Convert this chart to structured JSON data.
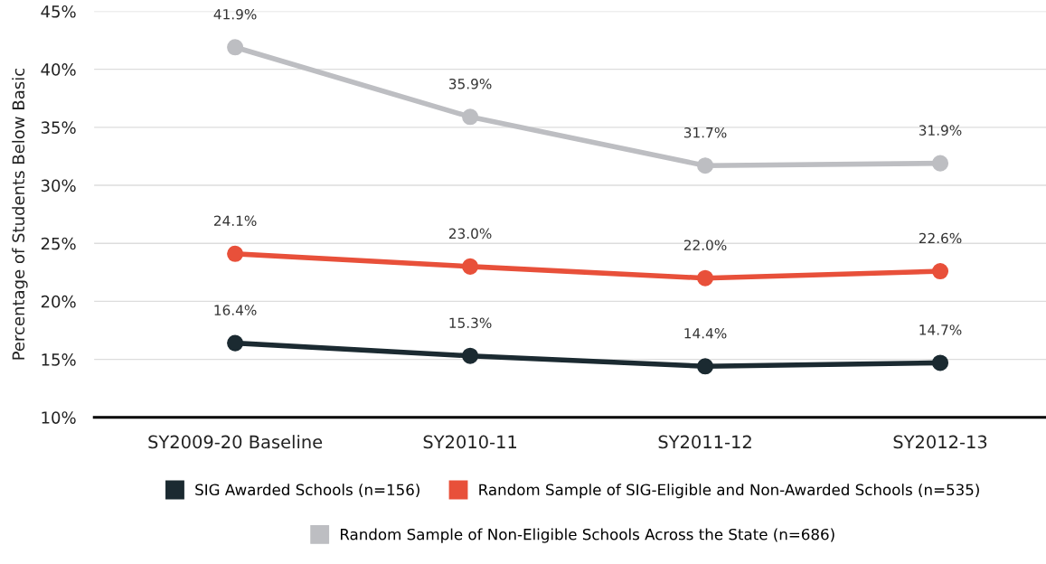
{
  "chart_data": {
    "type": "line",
    "ylabel": "Percentage of Students Below Basic",
    "categories": [
      "SY2009-20 Baseline",
      "SY2010-11",
      "SY2011-12",
      "SY2012-13"
    ],
    "series": [
      {
        "name": "SIG Awarded Schools (n=156)",
        "color": "#1b2a31",
        "values": [
          16.4,
          15.3,
          14.4,
          14.7
        ],
        "value_labels": [
          "16.4%",
          "15.3%",
          "14.4%",
          "14.7%"
        ]
      },
      {
        "name": "Random Sample of SIG-Eligible and Non-Awarded Schools (n=535)",
        "color": "#e8503a",
        "values": [
          24.1,
          23.0,
          22.0,
          22.6
        ],
        "value_labels": [
          "24.1%",
          "23.0%",
          "22.0%",
          "22.6%"
        ]
      },
      {
        "name": "Random Sample of Non-Eligible Schools Across the State (n=686)",
        "color": "#bdbec2",
        "values": [
          41.9,
          35.9,
          31.7,
          31.9
        ],
        "value_labels": [
          "41.9%",
          "35.9%",
          "31.7%",
          "31.9%"
        ]
      }
    ],
    "ylim": [
      10,
      45
    ],
    "yticks": [
      {
        "value": 10,
        "label": "10%"
      },
      {
        "value": 15,
        "label": "15%"
      },
      {
        "value": 20,
        "label": "20%"
      },
      {
        "value": 25,
        "label": "25%"
      },
      {
        "value": 30,
        "label": "30%"
      },
      {
        "value": 35,
        "label": "35%"
      },
      {
        "value": 40,
        "label": "40%"
      },
      {
        "value": 45,
        "label": "45%"
      }
    ],
    "grid": "y",
    "legend": "bottom",
    "marker": "circle",
    "line_style": "solid"
  }
}
